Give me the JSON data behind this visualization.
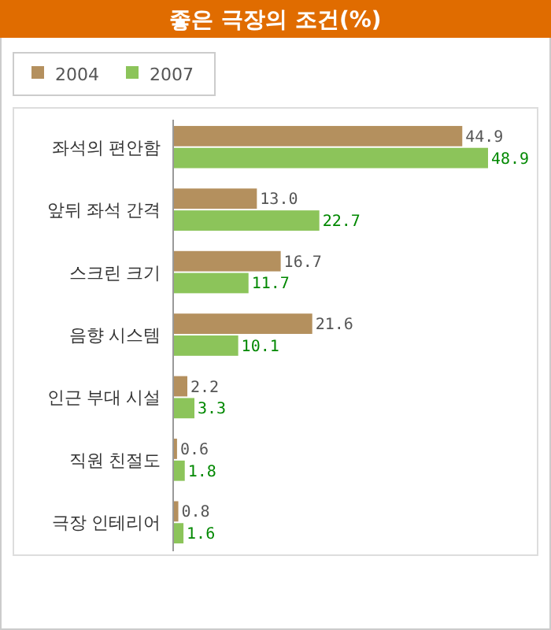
{
  "chart_data": {
    "type": "bar",
    "orientation": "horizontal",
    "title": "좋은 극장의 조건(%)",
    "categories": [
      "좌석의 편안함",
      "앞뒤 좌석 간격",
      "스크린 크기",
      "음향 시스템",
      "인근 부대 시설",
      "직원 친절도",
      "극장 인테리어"
    ],
    "series": [
      {
        "name": "2004",
        "color": "#b4905e",
        "values": [
          44.9,
          13.0,
          16.7,
          21.6,
          2.2,
          0.6,
          0.8
        ],
        "value_labels": [
          "44.9",
          "13.0",
          "16.7",
          "21.6",
          "2.2",
          "0.6",
          "0.8"
        ]
      },
      {
        "name": "2007",
        "color": "#8cc45a",
        "values": [
          48.9,
          22.7,
          11.7,
          10.1,
          3.3,
          1.8,
          1.6
        ],
        "value_labels": [
          "48.9",
          "22.7",
          "11.7",
          "10.1",
          "3.3",
          "1.8",
          "1.6"
        ]
      }
    ],
    "legend": "top left"
  }
}
